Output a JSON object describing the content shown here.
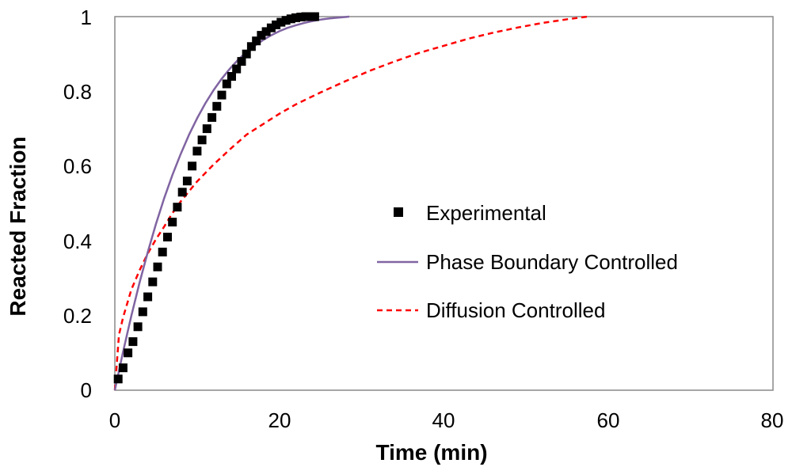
{
  "chart_data": {
    "type": "scatter",
    "title": "",
    "xlabel": "Time (min)",
    "ylabel": "Reacted Fraction",
    "xlim": [
      0,
      80
    ],
    "ylim": [
      0,
      1
    ],
    "xticks": [
      "0",
      "20",
      "40",
      "60",
      "80"
    ],
    "yticks": [
      "0",
      "0.2",
      "0.4",
      "0.6",
      "0.8",
      "1"
    ],
    "legend_position": "center-right",
    "series": [
      {
        "name": "Experimental",
        "style": "square-markers",
        "color": "#000000",
        "x": [
          0.4,
          1.0,
          1.6,
          2.2,
          2.8,
          3.4,
          4.0,
          4.6,
          5.2,
          5.8,
          6.4,
          7.0,
          7.6,
          8.2,
          8.8,
          9.4,
          10.0,
          10.6,
          11.2,
          11.8,
          12.4,
          13.0,
          13.6,
          14.2,
          14.8,
          15.4,
          16.0,
          16.6,
          17.2,
          17.8,
          18.4,
          19.0,
          19.6,
          20.2,
          20.8,
          21.4,
          22.0,
          22.6,
          23.2,
          23.8,
          24.3
        ],
        "y": [
          0.03,
          0.06,
          0.1,
          0.13,
          0.17,
          0.21,
          0.25,
          0.29,
          0.33,
          0.37,
          0.41,
          0.45,
          0.49,
          0.53,
          0.56,
          0.6,
          0.64,
          0.67,
          0.7,
          0.73,
          0.76,
          0.79,
          0.82,
          0.84,
          0.86,
          0.88,
          0.9,
          0.92,
          0.935,
          0.95,
          0.96,
          0.97,
          0.978,
          0.985,
          0.99,
          0.994,
          0.997,
          0.999,
          1.0,
          1.0,
          1.0
        ]
      },
      {
        "name": "Phase Boundary Controlled",
        "style": "solid-line",
        "color": "#8064A2",
        "x": [
          0,
          1,
          2,
          3,
          4,
          5,
          6,
          7,
          8,
          9,
          10,
          11,
          12,
          13,
          14,
          15,
          16,
          17,
          18,
          19,
          20,
          21,
          22,
          23,
          24,
          25,
          26,
          27,
          28,
          28.5
        ],
        "y": [
          0,
          0.103,
          0.199,
          0.288,
          0.37,
          0.445,
          0.514,
          0.576,
          0.632,
          0.683,
          0.728,
          0.768,
          0.803,
          0.834,
          0.861,
          0.885,
          0.905,
          0.922,
          0.937,
          0.95,
          0.961,
          0.97,
          0.977,
          0.983,
          0.988,
          0.992,
          0.995,
          0.997,
          0.999,
          1.0
        ]
      },
      {
        "name": "Diffusion Controlled",
        "style": "dashed-line",
        "color": "#FF0000",
        "x": [
          0,
          0.5,
          1,
          2,
          3,
          4,
          5,
          6,
          7,
          8,
          10,
          12,
          14,
          16,
          18,
          20,
          22,
          25,
          28,
          31,
          34,
          37,
          40,
          43,
          46,
          49,
          52,
          55,
          57.5
        ],
        "y": [
          0,
          0.148,
          0.195,
          0.269,
          0.321,
          0.366,
          0.404,
          0.438,
          0.474,
          0.505,
          0.559,
          0.604,
          0.645,
          0.684,
          0.712,
          0.74,
          0.765,
          0.797,
          0.827,
          0.855,
          0.88,
          0.903,
          0.922,
          0.941,
          0.957,
          0.971,
          0.983,
          0.993,
          1.0
        ]
      }
    ]
  }
}
